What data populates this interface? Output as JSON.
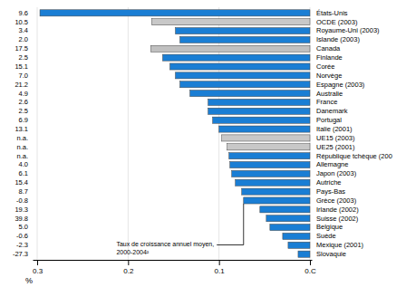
{
  "chart_data": {
    "type": "bar",
    "orientation": "horizontal",
    "categories": [
      "États-Unis",
      "OCDE (2003)",
      "Royaume-Uni (2003)",
      "Islande (2003)",
      "Canada",
      "Finlande",
      "Corée",
      "Norvège",
      "Espagne (2003)",
      "Australie",
      "France",
      "Danemark",
      "Portugal",
      "Italie (2001)",
      "UE15 (2003)",
      "UE25 (2001)",
      "République tchèque (200",
      "Allemagne",
      "Japon (2003)",
      "Autriche",
      "Pays-Bas",
      "Grèce (2003)",
      "Irlande (2002)",
      "Suisse (2002)",
      "Belgique",
      "Suède",
      "Mexique (2001)",
      "Slovaquie"
    ],
    "values": [
      0.297,
      0.174,
      0.148,
      0.143,
      0.175,
      0.162,
      0.154,
      0.148,
      0.143,
      0.132,
      0.112,
      0.112,
      0.107,
      0.1,
      0.097,
      0.091,
      0.089,
      0.088,
      0.086,
      0.082,
      0.075,
      0.073,
      0.055,
      0.048,
      0.044,
      0.03,
      0.024,
      0.013
    ],
    "colors": [
      "#1a7ed4",
      "#c8c8c8",
      "#1a7ed4",
      "#1a7ed4",
      "#c0c0c0",
      "#1a7ed4",
      "#1a7ed4",
      "#1a7ed4",
      "#1a7ed4",
      "#1a7ed4",
      "#1a7ed4",
      "#1a7ed4",
      "#1a7ed4",
      "#1a7ed4",
      "#c8c8c8",
      "#c8c8c8",
      "#1a7ed4",
      "#1a7ed4",
      "#1a7ed4",
      "#1a7ed4",
      "#1a7ed4",
      "#1a7ed4",
      "#1a7ed4",
      "#1a7ed4",
      "#1a7ed4",
      "#1a7ed4",
      "#1a7ed4",
      "#1a7ed4"
    ],
    "growth_rates": [
      "9.6",
      "10.5",
      "3.4",
      "2.0",
      "17.5",
      "2.5",
      "15.1",
      "7.0",
      "21.2",
      "4.9",
      "2.6",
      "2.5",
      "6.9",
      "13.1",
      "n.a.",
      "n.a.",
      "n.a.",
      "4.0",
      "6.1",
      "15.4",
      "8.7",
      "-0.8",
      "19.3",
      "39.8",
      "5.0",
      "-0.6",
      "-2.3",
      "-27.3"
    ],
    "xlabel": "%",
    "xlim": [
      0.305,
      -0.002
    ],
    "xticks": [
      0.3,
      0.2,
      0.1,
      {
        "value": 0.0,
        "label": "0.C"
      }
    ],
    "grid": true,
    "annotation": {
      "text": "Taux de croissance annuel moyen,\n2000-2004²",
      "category": "Grèce (2003)"
    }
  }
}
